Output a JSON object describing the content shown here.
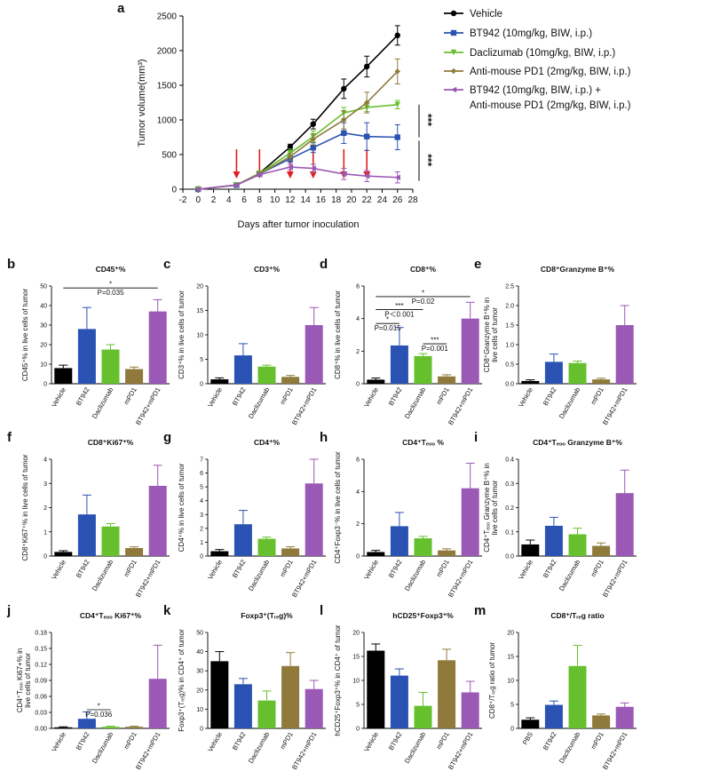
{
  "colors": {
    "Vehicle": "#000000",
    "BT942": "#2a52b3",
    "Daclizumab": "#66c02e",
    "mPD1": "#8f7a3c",
    "BT942+mPD1": "#9b59b6",
    "PBS": "#000000",
    "arrow": "#e02020"
  },
  "chart_data": [
    {
      "panel": "a",
      "type": "line",
      "xlabel": "Days after tumor inoculation",
      "ylabel": "Tumor volume(mm³)",
      "xlim": [
        -2,
        28
      ],
      "ylim": [
        0,
        2500
      ],
      "xticks": [
        -2,
        0,
        2,
        4,
        6,
        8,
        10,
        12,
        14,
        16,
        18,
        20,
        22,
        24,
        26,
        28
      ],
      "yticks": [
        0,
        500,
        1000,
        1500,
        2000,
        2500
      ],
      "dosing_days": [
        5,
        8,
        12,
        15,
        19,
        22
      ],
      "series": [
        {
          "name": "Vehicle",
          "key": "Vehicle",
          "marker": "circle",
          "legend": [
            "Vehicle"
          ],
          "x": [
            0,
            5,
            8,
            12,
            15,
            19,
            22,
            26
          ],
          "y": [
            0,
            60,
            230,
            610,
            940,
            1450,
            1770,
            2220
          ],
          "err": [
            0,
            10,
            30,
            40,
            70,
            140,
            150,
            140
          ]
        },
        {
          "name": "BT942",
          "key": "BT942",
          "marker": "square",
          "legend": [
            "BT942 (10mg/kg, BIW, i.p.)"
          ],
          "x": [
            0,
            5,
            8,
            12,
            15,
            19,
            22,
            26
          ],
          "y": [
            0,
            60,
            220,
            440,
            600,
            810,
            760,
            750
          ],
          "err": [
            0,
            10,
            25,
            50,
            70,
            150,
            200,
            180
          ]
        },
        {
          "name": "Daclizumab",
          "key": "Daclizumab",
          "marker": "triangle-down",
          "legend": [
            "Daclizumab (10mg/kg, BIW, i.p.)"
          ],
          "x": [
            0,
            5,
            8,
            12,
            15,
            19,
            22,
            26
          ],
          "y": [
            0,
            60,
            230,
            520,
            760,
            1100,
            1180,
            1220
          ],
          "err": [
            0,
            10,
            25,
            60,
            80,
            80,
            60,
            60
          ]
        },
        {
          "name": "Anti-mouse PD1",
          "key": "mPD1",
          "marker": "diamond",
          "legend": [
            "Anti-mouse PD1 (2mg/kg, BIW, i.p.)"
          ],
          "x": [
            0,
            5,
            8,
            12,
            15,
            19,
            22,
            26
          ],
          "y": [
            0,
            60,
            220,
            470,
            720,
            1000,
            1250,
            1700
          ],
          "err": [
            0,
            10,
            25,
            50,
            80,
            130,
            150,
            180
          ]
        },
        {
          "name": "BT942 + Anti-mouse PD1",
          "key": "BT942+mPD1",
          "marker": "triangle-left",
          "legend": [
            "BT942 (10mg/kg, BIW, i.p.) +",
            "Anti-mouse PD1 (2mg/kg, BIW, i.p.)"
          ],
          "x": [
            0,
            5,
            8,
            12,
            15,
            19,
            22,
            26
          ],
          "y": [
            0,
            60,
            210,
            320,
            300,
            220,
            190,
            170
          ],
          "err": [
            0,
            10,
            20,
            40,
            60,
            80,
            80,
            80
          ]
        }
      ],
      "annotations": [
        {
          "text": "***",
          "between": [
            "Vehicle",
            "BT942"
          ]
        },
        {
          "text": "***",
          "between": [
            "BT942",
            "BT942+mPD1"
          ]
        }
      ]
    },
    {
      "panel": "b",
      "type": "bar",
      "title": "CD45⁺%",
      "ylabel": "CD45⁺% in live cells of tumor",
      "categories": [
        "Vehicle",
        "BT942",
        "Daclizumab",
        "mPD1",
        "BT942+mPD1"
      ],
      "values": [
        8.0,
        28.0,
        17.5,
        7.5,
        37.0
      ],
      "errors": [
        1.5,
        11.0,
        2.5,
        1.0,
        6.0
      ],
      "ylim": [
        0,
        50
      ],
      "yticks": [
        0,
        10,
        20,
        30,
        40,
        50
      ],
      "significance": [
        {
          "i": 0,
          "j": 4,
          "stars": "*",
          "p": "P=0.035",
          "level": 49
        }
      ]
    },
    {
      "panel": "c",
      "type": "bar",
      "title": "CD3⁺%",
      "ylabel": "CD3⁺% in live cells of tumor",
      "categories": [
        "Vehicle",
        "BT942",
        "Daclizumab",
        "mPD1",
        "BT942+mPD1"
      ],
      "values": [
        0.9,
        5.8,
        3.5,
        1.4,
        12.0
      ],
      "errors": [
        0.3,
        2.4,
        0.3,
        0.3,
        3.6
      ],
      "ylim": [
        0,
        20
      ],
      "yticks": [
        0,
        5,
        10,
        15,
        20
      ],
      "significance": []
    },
    {
      "panel": "d",
      "type": "bar",
      "title": "CD8⁺%",
      "ylabel": "CD8⁺% in live cells of tumor",
      "categories": [
        "Vehicle",
        "BT942",
        "Daclizumab",
        "mPD1",
        "BT942+mPD1"
      ],
      "values": [
        0.25,
        2.35,
        1.7,
        0.45,
        4.0
      ],
      "errors": [
        0.1,
        1.1,
        0.15,
        0.1,
        1.0
      ],
      "ylim": [
        0,
        6
      ],
      "yticks": [
        0,
        2,
        4,
        6
      ],
      "significance": [
        {
          "i": 0,
          "j": 1,
          "stars": "*",
          "p": "P=0.015",
          "level": 3.7
        },
        {
          "i": 0,
          "j": 2,
          "stars": "***",
          "p": "P＜0.001",
          "level": 4.55
        },
        {
          "i": 0,
          "j": 4,
          "stars": "*",
          "p": "P=0.02",
          "level": 5.35
        },
        {
          "i": 2,
          "j": 3,
          "stars": "***",
          "p": "P=0.001",
          "level": 2.45
        }
      ]
    },
    {
      "panel": "e",
      "type": "bar",
      "title": "CD8⁺Granzyme B⁺%",
      "ylabel": "CD8⁺Granzyme B⁺% in",
      "ylabel2": "live cells of tumor",
      "categories": [
        "Vehicle",
        "BT942",
        "Daclizumab",
        "mPD1",
        "BT942+mPD1"
      ],
      "values": [
        0.07,
        0.56,
        0.53,
        0.11,
        1.5
      ],
      "errors": [
        0.03,
        0.2,
        0.05,
        0.03,
        0.5
      ],
      "ylim": [
        0,
        2.5
      ],
      "yticks": [
        0.0,
        0.5,
        1.0,
        1.5,
        2.0,
        2.5
      ],
      "decimals": 1,
      "significance": []
    },
    {
      "panel": "f",
      "type": "bar",
      "title": "CD8⁺Ki67⁺%",
      "ylabel": "CD8⁺Ki67⁺% in live cells of tumor",
      "categories": [
        "Vehicle",
        "BT942",
        "Daclizumab",
        "mPD1",
        "BT942+mPD1"
      ],
      "values": [
        0.17,
        1.72,
        1.22,
        0.33,
        2.9
      ],
      "errors": [
        0.05,
        0.8,
        0.12,
        0.05,
        0.85
      ],
      "ylim": [
        0,
        4
      ],
      "yticks": [
        0,
        1,
        2,
        3,
        4
      ],
      "significance": []
    },
    {
      "panel": "g",
      "type": "bar",
      "title": "CD4⁺%",
      "ylabel": "CD4⁺% in live cells of tumor",
      "categories": [
        "Vehicle",
        "BT942",
        "Daclizumab",
        "mPD1",
        "BT942+mPD1"
      ],
      "values": [
        0.35,
        2.3,
        1.25,
        0.55,
        5.25
      ],
      "errors": [
        0.12,
        1.0,
        0.12,
        0.12,
        1.75
      ],
      "ylim": [
        0,
        7
      ],
      "yticks": [
        0,
        1,
        2,
        3,
        4,
        5,
        6,
        7
      ],
      "significance": []
    },
    {
      "panel": "h",
      "type": "bar",
      "title": "CD4⁺Tₑₒₒ %",
      "titleHtml": "CD4+Teff %",
      "ylabel": "CD4⁺Foxp3⁻% in live cells of tumor",
      "categories": [
        "Vehicle",
        "BT942",
        "Daclizumab",
        "mPD1",
        "BT942+mPD1"
      ],
      "values": [
        0.25,
        1.85,
        1.1,
        0.35,
        4.2
      ],
      "errors": [
        0.1,
        0.85,
        0.12,
        0.1,
        1.55
      ],
      "ylim": [
        0,
        6
      ],
      "yticks": [
        0,
        2,
        4,
        6
      ],
      "significance": []
    },
    {
      "panel": "i",
      "type": "bar",
      "title": "CD4⁺Tₑₒₒ Granzyme B⁺%",
      "ylabel": "CD4⁺Tₑₒₒ Granzyme B⁺% in",
      "ylabel2": "live cells of tumor",
      "categories": [
        "Vehicle",
        "BT942",
        "Daclizumab",
        "mPD1",
        "BT942+mPD1"
      ],
      "values": [
        0.048,
        0.125,
        0.09,
        0.042,
        0.26
      ],
      "errors": [
        0.018,
        0.035,
        0.025,
        0.012,
        0.095
      ],
      "ylim": [
        0,
        0.4
      ],
      "yticks": [
        0.0,
        0.1,
        0.2,
        0.3,
        0.4
      ],
      "decimals": 1,
      "significance": []
    },
    {
      "panel": "j",
      "type": "bar",
      "title": "CD4⁺Tₑₒₒ Ki67⁺%",
      "ylabel": "CD4⁺Tₑₒₒ Ki67+% in",
      "ylabel2": "live cells of tumor",
      "categories": [
        "Vehicle",
        "BT942",
        "Daclizumab",
        "mPD1",
        "BT942+mPD1"
      ],
      "values": [
        0.002,
        0.018,
        0.003,
        0.003,
        0.093
      ],
      "errors": [
        0.001,
        0.013,
        0.001,
        0.001,
        0.063
      ],
      "ylim": [
        0,
        0.18
      ],
      "yticks": [
        0.0,
        0.03,
        0.06,
        0.09,
        0.12,
        0.15,
        0.18
      ],
      "decimals": 2,
      "significance": [
        {
          "i": 1,
          "j": 2,
          "stars": "*",
          "p": "P=0.036",
          "level": 0.035
        }
      ]
    },
    {
      "panel": "k",
      "type": "bar",
      "title": "Foxp3⁺(Tᵣₑg)%",
      "ylabel": "Foxp3⁺(Tᵣₑg)% in CD4⁺ of tumor",
      "categories": [
        "Vehicle",
        "BT942",
        "Daclizumab",
        "mPD1",
        "BT942+mPD1"
      ],
      "values": [
        35.0,
        23.0,
        14.5,
        32.5,
        20.5
      ],
      "errors": [
        5.0,
        3.0,
        5.0,
        7.0,
        4.5
      ],
      "ylim": [
        0,
        50
      ],
      "yticks": [
        0,
        10,
        20,
        30,
        40,
        50
      ],
      "significance": []
    },
    {
      "panel": "l",
      "type": "bar",
      "title": "hCD25⁺Foxp3⁺%",
      "ylabel": "hCD25⁺Foxp3⁺% in CD4⁺ of tumor",
      "categories": [
        "Vehicle",
        "BT942",
        "Daclizumab",
        "mPD1",
        "BT942+mPD1"
      ],
      "values": [
        16.2,
        11.0,
        4.7,
        14.2,
        7.5
      ],
      "errors": [
        1.4,
        1.4,
        2.8,
        2.3,
        2.3
      ],
      "ylim": [
        0,
        20
      ],
      "yticks": [
        0,
        5,
        10,
        15,
        20
      ],
      "significance": []
    },
    {
      "panel": "m",
      "type": "bar",
      "title": "CD8⁺/Tᵣₑg ratio",
      "ylabel": "CD8⁺/Tᵣₑg ratio of tumor",
      "categories": [
        "PBS",
        "BT942",
        "Daclizumab",
        "mPD1",
        "BT942+mPD1"
      ],
      "values": [
        1.8,
        4.9,
        13.0,
        2.7,
        4.5
      ],
      "errors": [
        0.4,
        0.8,
        4.3,
        0.3,
        0.8
      ],
      "ylim": [
        0,
        20
      ],
      "yticks": [
        0,
        5,
        10,
        15,
        20
      ],
      "significance": []
    }
  ]
}
